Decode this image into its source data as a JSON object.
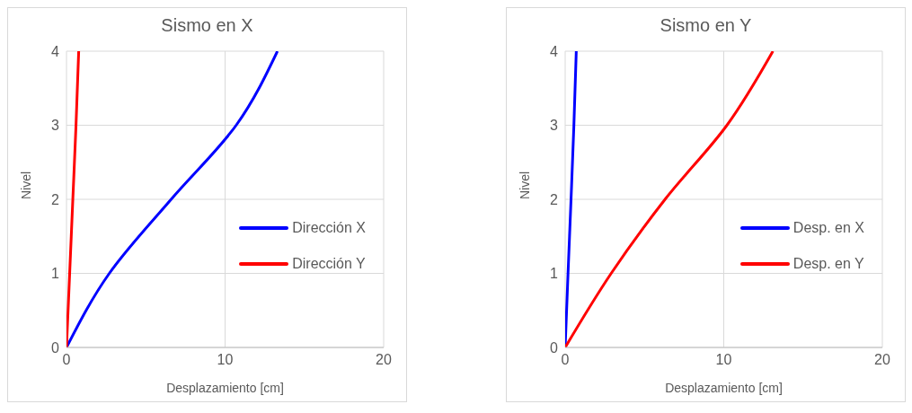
{
  "chart_data": [
    {
      "type": "line",
      "title": "Sismo en X",
      "xlabel": "Desplazamiento [cm]",
      "ylabel": "Nivel",
      "xlim": [
        0,
        20
      ],
      "xticks": [
        0,
        10,
        20
      ],
      "ylim": [
        0,
        4
      ],
      "yticks": [
        0,
        1,
        2,
        3,
        4
      ],
      "grid": true,
      "legend": "right",
      "marker": "none",
      "series": [
        {
          "name": "Dirección X",
          "color": "#0000ff",
          "x": [
            0,
            2.7,
            6.6,
            10.7,
            13.3
          ],
          "values": [
            0,
            1,
            2,
            3,
            4
          ]
        },
        {
          "name": "Dirección Y",
          "color": "#ff0000",
          "x": [
            0,
            0.2,
            0.4,
            0.6,
            0.77
          ],
          "values": [
            0,
            1,
            2,
            3,
            4
          ]
        }
      ]
    },
    {
      "type": "line",
      "title": "Sismo en Y",
      "xlabel": "Desplazamiento [cm]",
      "ylabel": "Nivel",
      "xlim": [
        0,
        20
      ],
      "xticks": [
        0,
        10,
        20
      ],
      "ylim": [
        0,
        4
      ],
      "yticks": [
        0,
        1,
        2,
        3,
        4
      ],
      "grid": true,
      "legend": "right",
      "marker": "none",
      "series": [
        {
          "name": "Desp. en X",
          "color": "#0000ff",
          "x": [
            0,
            0.18,
            0.37,
            0.55,
            0.7
          ],
          "values": [
            0,
            1,
            2,
            3,
            4
          ]
        },
        {
          "name": "Desp. en Y",
          "color": "#ff0000",
          "x": [
            0,
            2.9,
            6.3,
            10.2,
            13.1
          ],
          "values": [
            0,
            1,
            2,
            3,
            4
          ]
        }
      ]
    }
  ]
}
